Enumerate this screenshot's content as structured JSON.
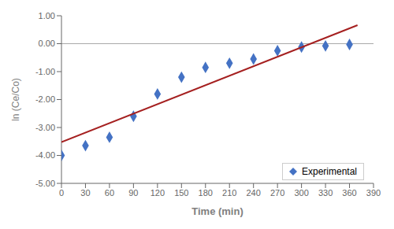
{
  "chart_data": {
    "type": "scatter",
    "xlabel": "Time (min)",
    "ylabel": "ln (Ce/Co)",
    "xlim": [
      0,
      390
    ],
    "ylim": [
      -5.0,
      1.0
    ],
    "xticks": [
      0,
      30,
      60,
      90,
      120,
      150,
      180,
      210,
      240,
      270,
      300,
      330,
      360,
      390
    ],
    "yticks": [
      {
        "value": -5.0,
        "label": "-5.00"
      },
      {
        "value": -4.0,
        "label": "-4.00"
      },
      {
        "value": -3.0,
        "label": "-3.00"
      },
      {
        "value": -2.0,
        "label": "-2.00"
      },
      {
        "value": -1.0,
        "label": "-1.00"
      },
      {
        "value": 0.0,
        "label": "0.00"
      },
      {
        "value": 1.0,
        "label": "1.00"
      }
    ],
    "grid": false,
    "legend": "lower right",
    "reference_lines": [
      {
        "y": 0,
        "color": "#aaaaaa"
      }
    ],
    "series": [
      {
        "name": "Experimental",
        "type": "scatter",
        "marker": "diamond",
        "color": "#4472C4",
        "x": [
          0,
          30,
          60,
          90,
          120,
          150,
          180,
          210,
          240,
          270,
          300,
          330,
          360
        ],
        "values": [
          -4.0,
          -3.65,
          -3.35,
          -2.6,
          -1.8,
          -1.2,
          -0.85,
          -0.7,
          -0.55,
          -0.25,
          -0.12,
          -0.08,
          -0.03
        ]
      },
      {
        "type": "line",
        "line_style": "solid",
        "color": "#A52020",
        "x": [
          0,
          370
        ],
        "values": [
          -3.52,
          0.661
        ]
      }
    ]
  }
}
